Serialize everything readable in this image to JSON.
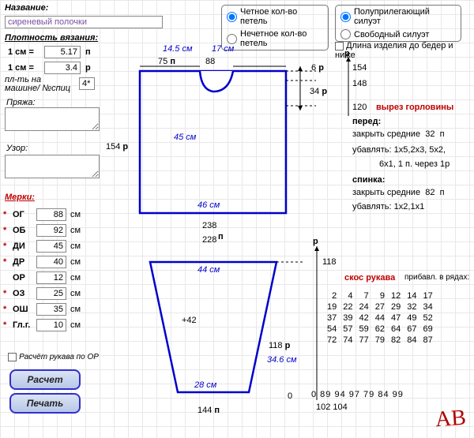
{
  "header": {
    "name_label": "Название:",
    "name_value": "сиреневый полочки"
  },
  "radios1": {
    "opt1": "Четное кол-во петель",
    "opt2": "Нечетное кол-во петель",
    "selected": 0
  },
  "radios2": {
    "opt1": "Полуприлегающий силуэт",
    "opt2": "Свободный силуэт",
    "selected": 0
  },
  "hip_length": {
    "label": "Длина изделия до бедер и ниже"
  },
  "density": {
    "title": "Плотность вязания:",
    "row1_left": "1 см =",
    "row1_val": "5.17",
    "row1_unit": "п",
    "row2_left": "1 см =",
    "row2_val": "3.4",
    "row2_unit": "р",
    "machine_label": "пл-ть на машине/ №спиц",
    "machine_val": "4*",
    "yarn_label": "Пряжа:",
    "pattern_label": "Узор:"
  },
  "measures": {
    "title": "Мерки:",
    "unit": "см",
    "rows": [
      {
        "code": "ОГ",
        "val": "88",
        "star": true
      },
      {
        "code": "ОБ",
        "val": "92",
        "star": true
      },
      {
        "code": "ДИ",
        "val": "45",
        "star": true
      },
      {
        "code": "ДР",
        "val": "40",
        "star": true
      },
      {
        "code": "ОР",
        "val": "12",
        "star": false
      },
      {
        "code": "ОЗ",
        "val": "25",
        "star": true
      },
      {
        "code": "ОШ",
        "val": "35",
        "star": true
      },
      {
        "code": "Гл.г.",
        "val": "10",
        "star": true
      }
    ]
  },
  "sleeve_calc": {
    "label": "Расчёт рукава по ОР"
  },
  "buttons": {
    "calc": "Расчет",
    "print": "Печать"
  },
  "diagram_top": {
    "left_w_cm": "14.5 см",
    "right_w_cm": "17 см",
    "left_p": "75",
    "right_p": "88",
    "p_unit": "п",
    "side_rows": "154",
    "side_unit": "р",
    "height_cm": "45 см",
    "width_cm": "46 см",
    "width_p": "238",
    "width_p2": "228",
    "width_unit": "п",
    "neck_drop": "6",
    "neck_drop_unit": "р",
    "shoulder_rows": "34",
    "shoulder_unit": "р",
    "r154": "154",
    "r148": "148",
    "r120": "120",
    "neckline_title": "вырез горловины",
    "front_label": "перед:",
    "front_close": "закрыть средние",
    "front_close_val": "32",
    "front_close_unit": "п",
    "front_dec_label": "убавлять:",
    "front_dec": "1х5,2х3, 5х2,",
    "front_dec2": "6х1, 1 п. через 1р",
    "back_label": "спинка:",
    "back_close": "закрыть средние",
    "back_close_val": "82",
    "back_close_unit": "п",
    "back_dec_label": "убавлять:",
    "back_dec": "1х2,1х1"
  },
  "diagram_bottom": {
    "top_w_cm": "44 см",
    "bottom_w_cm": "28 см",
    "plus": "+42",
    "rows": "118",
    "rows_unit": "р",
    "height_cm": "34.6 см",
    "bottom_p": "144",
    "bottom_unit": "п",
    "zero": "0",
    "axis": "р",
    "sleeve_title": "скос рукава",
    "sleeve_sub": "прибавл. в рядах:",
    "lastrow": [
      "0",
      "89",
      "94",
      "97",
      "79",
      "84",
      "99"
    ],
    "under": [
      "102",
      "104"
    ]
  },
  "sleeve_table": [
    [
      2,
      4,
      7,
      9,
      12,
      14,
      17
    ],
    [
      19,
      22,
      24,
      27,
      29,
      32,
      34
    ],
    [
      37,
      39,
      42,
      44,
      47,
      49,
      52
    ],
    [
      54,
      57,
      59,
      62,
      64,
      67,
      69
    ],
    [
      72,
      74,
      77,
      79,
      82,
      84,
      87
    ]
  ],
  "logo": "АВ"
}
